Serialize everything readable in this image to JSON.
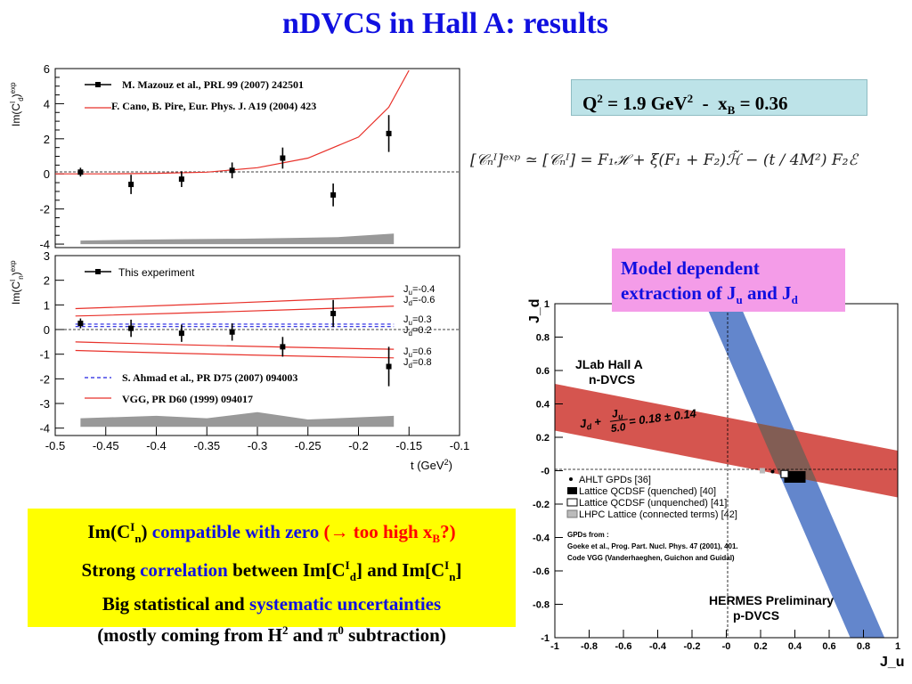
{
  "slide": {
    "title": "nDVCS in Hall A: results",
    "kinematics": {
      "q_label": "Q",
      "q_exp": "2",
      "q_value": " = 1.9 GeV",
      "q_unit_exp": "2",
      "sep": "  -  ",
      "xb_label": "x",
      "xb_sub": "B",
      "xb_value": " = 0.36"
    },
    "formula": "[𝒞ₙᴵ]ᵉˣᵖ ≃ [𝒞ₙᴵ] = F₁ℋ + ξ(F₁ + F₂)ℋ̃ − (t / 4M²) F₂ℰ",
    "model_box": {
      "line1": "Model dependent",
      "line2_pre": "extraction of J",
      "line2_sub1": "u",
      "line2_mid": " and J",
      "line2_sub2": "d"
    },
    "summary": {
      "l1_a": "Im(C",
      "l1_sup": "I",
      "l1_sub": "n",
      "l1_b": ")",
      "l1_c": " compatible with zero ",
      "l1_d": "(→ too high x",
      "l1_sub2": "B",
      "l1_e": "?)",
      "l2_a": "Strong ",
      "l2_b": "correlation",
      "l2_c": " between Im[C",
      "l2_sup1": "I",
      "l2_sub1": "d",
      "l2_d": "] and Im[C",
      "l2_sup2": "I",
      "l2_sub2": "n",
      "l2_e": "]",
      "l3_a": "Big statistical and ",
      "l3_b": "systematic uncertainties",
      "l4_a": "(mostly coming from H",
      "l4_sup": "2",
      "l4_b": " and π",
      "l4_sup2": "0",
      "l4_c": " subtraction)"
    }
  },
  "chart_data": [
    {
      "type": "scatter",
      "panel": "top",
      "ylabel": "Im(C_d^I)^exp",
      "ylim": [
        -4.2,
        6
      ],
      "yticks": [
        "6",
        "4",
        "2",
        "0",
        "-2",
        "-4"
      ],
      "x": [
        -0.475,
        -0.425,
        -0.375,
        -0.325,
        -0.275,
        -0.225,
        -0.17
      ],
      "y": [
        0.1,
        -0.6,
        -0.3,
        0.2,
        0.9,
        -1.2,
        2.3
      ],
      "err": [
        0.25,
        0.55,
        0.45,
        0.45,
        0.6,
        0.65,
        1.05
      ],
      "theory_curve": {
        "x": [
          -0.5,
          -0.45,
          -0.4,
          -0.35,
          -0.3,
          -0.25,
          -0.2,
          -0.17,
          -0.15
        ],
        "y": [
          0,
          0,
          0.03,
          0.1,
          0.35,
          0.9,
          2.1,
          3.8,
          5.9
        ]
      },
      "syst_band": {
        "x": [
          -0.475,
          -0.42,
          -0.37,
          -0.32,
          -0.27,
          -0.22,
          -0.165
        ],
        "lower": [
          -4,
          -4,
          -4,
          -4,
          -4,
          -4,
          -4
        ],
        "upper": [
          -3.8,
          -3.75,
          -3.72,
          -3.7,
          -3.65,
          -3.6,
          -3.4
        ]
      },
      "legend": [
        "M. Mazouz et al., PRL 99 (2007) 242501",
        "F. Cano, B. Pire, Eur. Phys. J. A19 (2004) 423"
      ]
    },
    {
      "type": "scatter",
      "panel": "bottom",
      "ylabel": "Im(C_n^I)^exp",
      "xlabel": "t (GeV²)",
      "xlim": [
        -0.5,
        -0.1
      ],
      "ylim": [
        -4.3,
        3
      ],
      "xticks": [
        "-0.5",
        "-0.45",
        "-0.4",
        "-0.35",
        "-0.3",
        "-0.25",
        "-0.2",
        "-0.15",
        "-0.1"
      ],
      "yticks": [
        "3",
        "2",
        "1",
        "0",
        "-1",
        "-2",
        "-3",
        "-4"
      ],
      "x": [
        -0.475,
        -0.425,
        -0.375,
        -0.325,
        -0.275,
        -0.225,
        -0.17
      ],
      "y": [
        0.25,
        0.05,
        -0.15,
        -0.1,
        -0.7,
        0.65,
        -1.5
      ],
      "err": [
        0.2,
        0.35,
        0.35,
        0.35,
        0.4,
        0.55,
        0.8
      ],
      "vgg_curves": [
        {
          "x": [
            -0.48,
            -0.165
          ],
          "y": [
            0.85,
            1.35
          ]
        },
        {
          "x": [
            -0.48,
            -0.165
          ],
          "y": [
            0.55,
            0.95
          ]
        },
        {
          "x": [
            -0.48,
            -0.165
          ],
          "y": [
            -0.5,
            -0.8
          ]
        },
        {
          "x": [
            -0.48,
            -0.165
          ],
          "y": [
            -0.85,
            -1.15
          ]
        }
      ],
      "ahmad_curves": [
        {
          "y": 0.22
        },
        {
          "y": 0.12
        }
      ],
      "curve_labels": [
        "J_u=-0.4",
        "J_d=-0.6",
        "J_u=0.3",
        "J_d=0.2",
        "J_u=0.6",
        "J_d=0.8"
      ],
      "syst_band": {
        "x": [
          -0.475,
          -0.4,
          -0.35,
          -0.3,
          -0.25,
          -0.165
        ],
        "lower": [
          -3.95,
          -3.95,
          -3.95,
          -3.95,
          -3.95,
          -3.95
        ],
        "upper": [
          -3.6,
          -3.5,
          -3.6,
          -3.35,
          -3.65,
          -3.5
        ]
      },
      "legend": [
        "This experiment",
        "S. Ahmad et al., PR D75 (2007) 094003",
        "VGG, PR D60 (1999) 094017"
      ]
    },
    {
      "type": "scatter",
      "panel": "jujd",
      "xlabel": "J_u",
      "ylabel": "J_d",
      "xlim": [
        -1,
        1
      ],
      "ylim": [
        -1,
        1
      ],
      "xticks": [
        "-1",
        "-0.8",
        "-0.6",
        "-0.4",
        "-0.2",
        "-0",
        "0.2",
        "0.4",
        "0.6",
        "0.8",
        "1"
      ],
      "yticks": [
        "1",
        "0.8",
        "0.6",
        "0.4",
        "0.2",
        "-0",
        "-0.2",
        "-0.4",
        "-0.6",
        "-0.8",
        "-1"
      ],
      "hall_a_band": {
        "label_top": "JLab Hall A",
        "label_bot": "n-DVCS",
        "relation_pre": "J",
        "relation_sub_d": "d",
        "relation_plus": " + ",
        "relation_ju": "J",
        "relation_sub_u": "u",
        "relation_den": "5.0",
        "relation_post": " = 0.18 ± 0.14",
        "center": 0.18,
        "halfwidth": 0.14,
        "slope_divisor": 5.0
      },
      "hermes_band": {
        "label_top": "HERMES Preliminary",
        "label_bot": "p-DVCS"
      },
      "points": [
        {
          "name": "AHLT GPDs [36]",
          "ju": 0.27,
          "jd": -0.005
        },
        {
          "name": "Lattice QCDSF (quenched) [40]",
          "ju": 0.4,
          "jd": -0.04
        },
        {
          "name": "Lattice QCDSF (unquenched) [41]",
          "ju": 0.34,
          "jd": -0.02
        },
        {
          "name": "LHPC Lattice (connected terms) [42]",
          "ju": 0.21,
          "jd": -0.0
        }
      ],
      "legend": [
        "AHLT GPDs [36]",
        "Lattice QCDSF (quenched) [40]",
        "Lattice QCDSF (unquenched) [41]",
        "LHPC Lattice (connected terms) [42]"
      ],
      "note_lines": [
        "GPDs from :",
        "Goeke et al., Prog. Part. Nucl. Phys. 47 (2001), 401.",
        "Code VGG  (Vanderhaeghen, Guichon and Guidal)"
      ]
    }
  ],
  "colors": {
    "title": "#1010e0",
    "curve_red": "#e8312a",
    "ahmad_blue": "#2020e0",
    "band_red": "#d0433c",
    "band_blue": "#5b7fc9",
    "band_overlap": "#7a5f55",
    "syst_gray": "#999999"
  }
}
